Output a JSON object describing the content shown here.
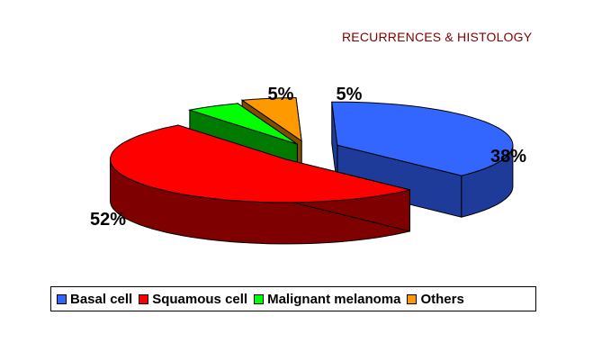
{
  "chart_data": {
    "type": "pie",
    "title": "RECURRENCES & HISTOLOGY",
    "categories": [
      "Basal cell",
      "Squamous cell",
      "Malignant melanoma",
      "Others"
    ],
    "values": [
      38,
      52,
      5,
      5
    ],
    "value_labels": [
      "38%",
      "52%",
      "5%",
      "5%"
    ],
    "colors": [
      "#3366ff",
      "#ff0000",
      "#00ff00",
      "#ff9900"
    ],
    "side_colors": [
      "#1f3b99",
      "#7f0000",
      "#007a00",
      "#7f4c00"
    ],
    "exploded": true,
    "three_d": true,
    "legend_position": "bottom"
  }
}
